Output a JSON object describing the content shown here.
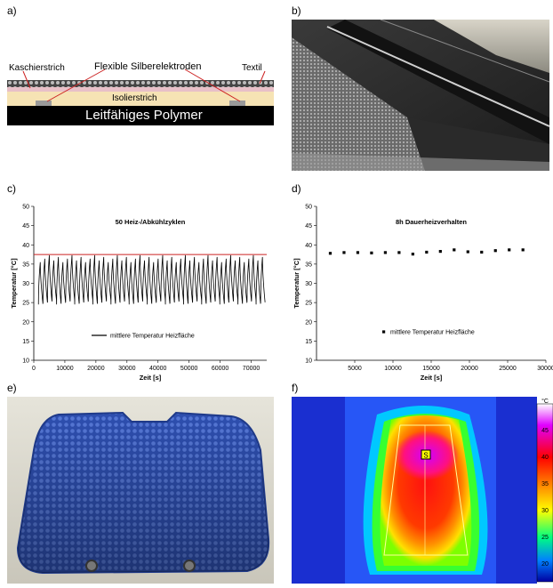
{
  "panels": {
    "a": {
      "label": "a)",
      "texts": {
        "kaschierstrich": "Kaschierstrich",
        "electrodes": "Flexible Silberelektroden",
        "textil": "Textil",
        "isolierstrich": "Isolierstrich",
        "polymer": "Leitfähiges Polymer"
      },
      "colors": {
        "insulation": "#f6e3b4",
        "polymer": "#000000",
        "coating": "#e8c0c8",
        "textile": "#333333",
        "electrode": "#9a9a9a"
      }
    },
    "b": {
      "label": "b)"
    },
    "c": {
      "label": "c)"
    },
    "d": {
      "label": "d)"
    },
    "e": {
      "label": "e)"
    },
    "f": {
      "label": "f)",
      "scale_unit": "°C",
      "scale_ticks": [
        "45",
        "40",
        "35",
        "30",
        "25",
        "20"
      ],
      "marker": "S"
    }
  },
  "chart_data": [
    {
      "type": "line",
      "title": "50 Heiz-/Abkühlzyklen",
      "xlabel": "Zeit [s]",
      "ylabel": "Temperatur [°C]",
      "xlim": [
        0,
        75000
      ],
      "ylim": [
        10,
        50
      ],
      "xticks": [
        "0",
        "10000",
        "20000",
        "30000",
        "40000",
        "50000",
        "60000",
        "70000"
      ],
      "yticks": [
        "10",
        "15",
        "20",
        "25",
        "30",
        "35",
        "40",
        "45",
        "50"
      ],
      "reference_line": {
        "y": 37.5,
        "color": "#cc2222"
      },
      "cycles": 50,
      "y_min": 24.5,
      "y_max": 37.5,
      "series": [
        {
          "name": "mittlere Temperatur Heizfläche",
          "color": "#000000"
        }
      ]
    },
    {
      "type": "scatter",
      "title": "8h Dauerheizverhalten",
      "xlabel": "Zeit [s]",
      "ylabel": "Temperatur [°C]",
      "xlim": [
        0,
        30000
      ],
      "ylim": [
        10,
        50
      ],
      "xticks": [
        "5000",
        "10000",
        "15000",
        "20000",
        "25000",
        "30000"
      ],
      "yticks": [
        "10",
        "15",
        "20",
        "25",
        "30",
        "35",
        "40",
        "45",
        "50"
      ],
      "series": [
        {
          "name": "mittlere Temperatur Heizfläche",
          "x": [
            1800,
            3600,
            5400,
            7200,
            9000,
            10800,
            12600,
            14400,
            16200,
            18000,
            19800,
            21600,
            23400,
            25200,
            27000
          ],
          "y": [
            37.8,
            38.0,
            38.0,
            37.9,
            38.0,
            38.0,
            37.6,
            38.1,
            38.3,
            38.7,
            38.2,
            38.1,
            38.5,
            38.7,
            38.7
          ]
        }
      ]
    }
  ]
}
